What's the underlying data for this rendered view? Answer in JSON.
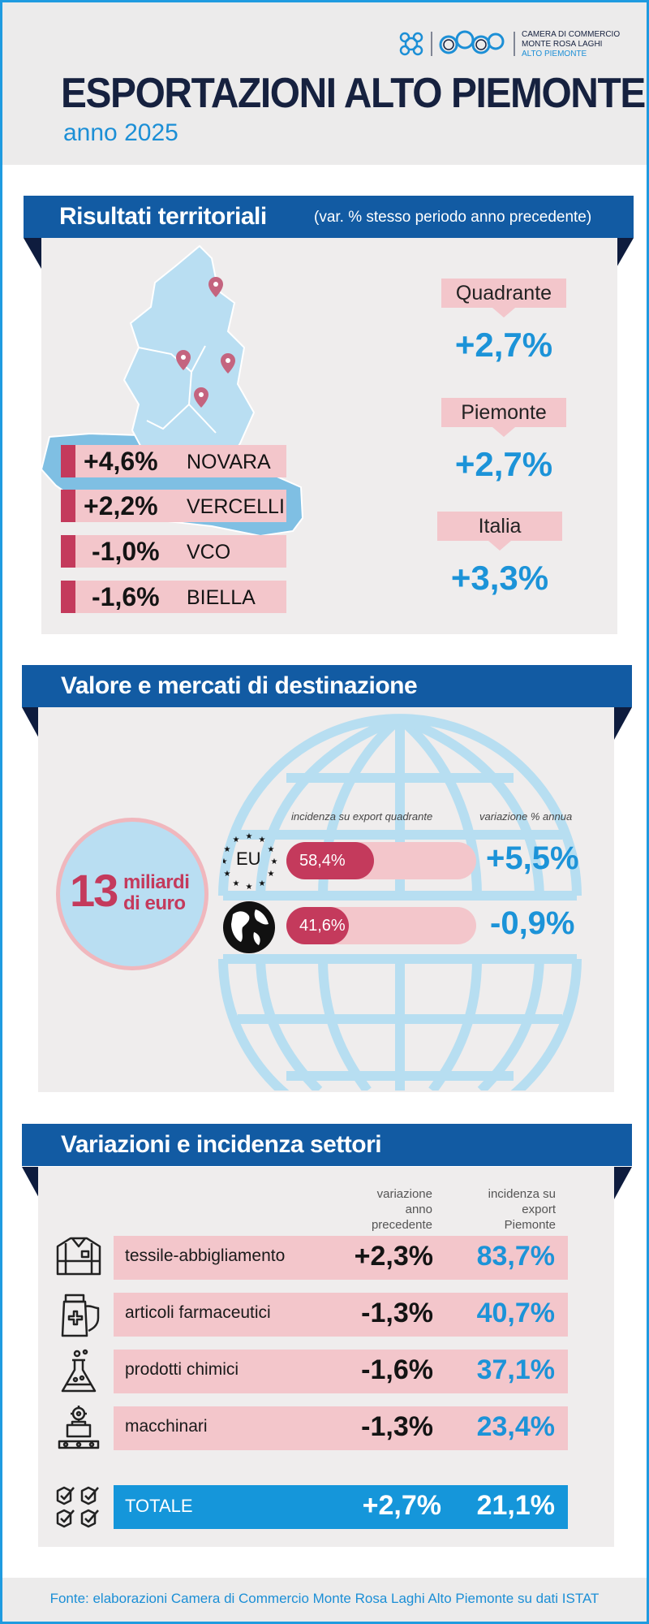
{
  "logo": {
    "line1": "CAMERA DI COMMERCIO",
    "line2": "MONTE ROSA LAGHI",
    "line3": "ALTO PIEMONTE"
  },
  "header": {
    "title": "ESPORTAZIONI ALTO PIEMONTE",
    "subtitle": "anno 2025"
  },
  "territorial": {
    "heading": "Risultati territoriali",
    "note": "(var. % stesso periodo anno precedente)",
    "provinces": [
      {
        "value": "+4,6%",
        "name": "NOVARA"
      },
      {
        "value": "+2,2%",
        "name": "VERCELLI"
      },
      {
        "value": "-1,0%",
        "name": "VCO"
      },
      {
        "value": "-1,6%",
        "name": "BIELLA"
      }
    ],
    "areas": [
      {
        "label": "Quadrante",
        "value": "+2,7%"
      },
      {
        "label": "Piemonte",
        "value": "+2,7%"
      },
      {
        "label": "Italia",
        "value": "+3,3%"
      }
    ]
  },
  "markets": {
    "heading": "Valore e mercati di destinazione",
    "total_number": "13",
    "total_unit_1": "miliardi",
    "total_unit_2": "di euro",
    "col_incidence": "incidenza su export  quadrante",
    "col_variation": "variazione % annua",
    "rows": [
      {
        "icon": "eu-flag-icon",
        "icon_text": "EU",
        "share_label": "58,4%",
        "share": 58.4,
        "variation": "+5,5%"
      },
      {
        "icon": "world-globe-icon",
        "share_label": "41,6%",
        "share": 41.6,
        "variation": "-0,9%"
      }
    ]
  },
  "sectors": {
    "heading": "Variazioni e incidenza settori",
    "col_var_1": "variazione",
    "col_var_2": "anno",
    "col_var_3": "precedente",
    "col_inc_1": "incidenza su",
    "col_inc_2": "export",
    "col_inc_3": "Piemonte",
    "rows": [
      {
        "icon": "shirt-icon",
        "name": "tessile-abbigliamento",
        "variation": "+2,3%",
        "incidence": "83,7%"
      },
      {
        "icon": "medicine-icon",
        "name": "articoli farmaceutici",
        "variation": "-1,3%",
        "incidence": "40,7%"
      },
      {
        "icon": "flask-icon",
        "name": "prodotti chimici",
        "variation": "-1,6%",
        "incidence": "37,1%"
      },
      {
        "icon": "machinery-icon",
        "name": "macchinari",
        "variation": "-1,3%",
        "incidence": "23,4%"
      }
    ],
    "total": {
      "icon": "checklist-icon",
      "name": "TOTALE",
      "variation": "+2,7%",
      "incidence": "21,1%"
    }
  },
  "colors": {
    "navy": "#125ba3",
    "blue": "#1c93d8",
    "crimson": "#c43a5c",
    "pink": "#f3c6cb",
    "dark": "#16213f"
  },
  "footer": {
    "source": "Fonte: elaborazioni Camera di Commercio Monte Rosa Laghi Alto Piemonte su dati ISTAT"
  }
}
